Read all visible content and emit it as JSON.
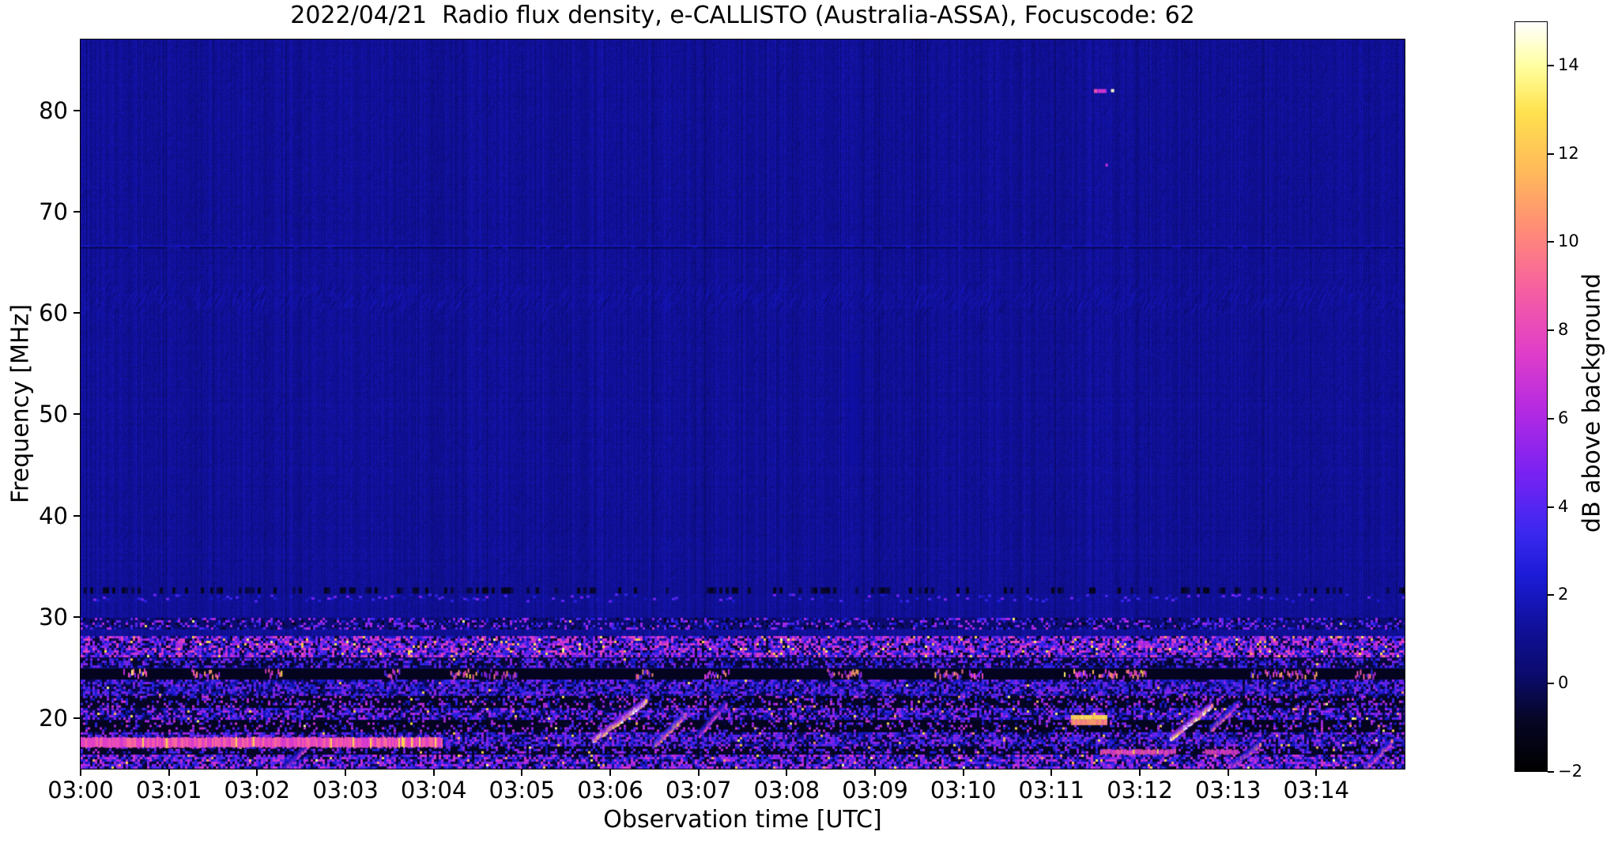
{
  "chart_data": {
    "type": "heatmap",
    "subtype": "radio-spectrogram",
    "title": "2022/04/21  Radio flux density, e-CALLISTO (Australia-ASSA), Focuscode: 62",
    "date": "2022/04/21",
    "instrument": "e-CALLISTO",
    "station": "Australia-ASSA",
    "focuscode": "62",
    "xlabel": "Observation time [UTC]",
    "ylabel": "Frequency [MHz]",
    "x_ticks": [
      "03:00",
      "03:01",
      "03:02",
      "03:03",
      "03:04",
      "03:05",
      "03:06",
      "03:07",
      "03:08",
      "03:09",
      "03:10",
      "03:11",
      "03:12",
      "03:13",
      "03:14"
    ],
    "x_total_minutes": 15,
    "xlim": [
      "03:00",
      "03:15"
    ],
    "y_ticks": [
      20,
      30,
      40,
      50,
      60,
      70,
      80
    ],
    "ylim": [
      15,
      87
    ],
    "grid": false,
    "background_db": 1.2,
    "colorbar": {
      "label": "dB above background",
      "position": "right",
      "vmin": -2,
      "vmax": 15,
      "tick_values": [
        14,
        12,
        10,
        8,
        6,
        4,
        2,
        0,
        -2
      ],
      "tick_labels": [
        "14",
        "12",
        "10",
        "8",
        "6",
        "4",
        "2",
        "0",
        "−2"
      ],
      "gradient_stops": [
        {
          "pos": 0.0,
          "color": "#000000"
        },
        {
          "pos": 0.07,
          "color": "#060626"
        },
        {
          "pos": 0.13,
          "color": "#0b0b6e"
        },
        {
          "pos": 0.19,
          "color": "#101099"
        },
        {
          "pos": 0.26,
          "color": "#1b1bd6"
        },
        {
          "pos": 0.32,
          "color": "#3c28f0"
        },
        {
          "pos": 0.4,
          "color": "#7a22f2"
        },
        {
          "pos": 0.48,
          "color": "#b32ae2"
        },
        {
          "pos": 0.56,
          "color": "#e03ec8"
        },
        {
          "pos": 0.64,
          "color": "#f55ea2"
        },
        {
          "pos": 0.72,
          "color": "#ff8a78"
        },
        {
          "pos": 0.8,
          "color": "#ffb95a"
        },
        {
          "pos": 0.88,
          "color": "#ffe14e"
        },
        {
          "pos": 0.94,
          "color": "#ffff9e"
        },
        {
          "pos": 1.0,
          "color": "#ffffff"
        }
      ]
    },
    "quiet_region": {
      "f_mhz": [
        33,
        87
      ],
      "level_db": 1.2,
      "character": "uniform dark blue with vertical striation noise and faint diagonal scratches"
    },
    "persistent_lines": [
      {
        "f_mhz": 66.6,
        "character": "faint lighter channel line with dark line just below, full duration"
      },
      {
        "f_mhz": [
          59.7,
          62.3
        ],
        "character": "band of dense faint diagonal (rising) interference hatching, full duration"
      },
      {
        "f_mhz": [
          31.4,
          32.3
        ],
        "character": "faint speckled interference line, full duration"
      },
      {
        "f_mhz": [
          32.3,
          32.9
        ],
        "character": "dark dashed line, full duration"
      }
    ],
    "rfi_bands": [
      {
        "f_mhz": [
          28.8,
          29.9
        ],
        "db": [
          1,
          6
        ],
        "character": "sparse speckle",
        "paint": {
          "base": 0.13,
          "density": 0.3,
          "amp": [
            0.2,
            0.5
          ],
          "hot": 0.005
        }
      },
      {
        "f_mhz": [
          25.9,
          28.1
        ],
        "db": [
          1,
          10
        ],
        "character": "dense bright speckle with orange/yellow bursts",
        "paint": {
          "base": 0.1,
          "density": 0.8,
          "amp": [
            0.18,
            0.6
          ],
          "hot": 0.035
        }
      },
      {
        "f_mhz": [
          25.0,
          25.9
        ],
        "db": [
          1,
          6
        ],
        "character": "moderate speckle",
        "paint": {
          "base": 0.08,
          "density": 0.5,
          "amp": [
            0.18,
            0.45
          ],
          "hot": 0.008
        }
      },
      {
        "f_mhz": [
          23.8,
          24.9
        ],
        "db": [
          -2,
          12
        ],
        "character": "black band with clusters of bright dashes",
        "paint": {
          "base": 0.04,
          "density": 0.45,
          "amp": [
            0.3,
            0.8
          ],
          "hot": 0.05,
          "cluster": true
        }
      },
      {
        "f_mhz": [
          22.2,
          23.8
        ],
        "db": [
          1,
          6
        ],
        "character": "blue/violet speckle",
        "paint": {
          "base": 0.1,
          "density": 0.7,
          "amp": [
            0.17,
            0.45
          ],
          "hot": 0.006
        }
      },
      {
        "f_mhz": [
          21.0,
          22.2
        ],
        "db": [
          -2,
          8
        ],
        "character": "dark with sparse bright spots",
        "paint": {
          "base": 0.05,
          "density": 0.3,
          "amp": [
            0.2,
            0.55
          ],
          "hot": 0.015
        }
      },
      {
        "f_mhz": [
          19.8,
          21.0
        ],
        "db": [
          1,
          8
        ],
        "character": "moderate speckle",
        "paint": {
          "base": 0.09,
          "density": 0.65,
          "amp": [
            0.18,
            0.5
          ],
          "hot": 0.02
        }
      },
      {
        "f_mhz": [
          18.6,
          19.8
        ],
        "db": [
          -2,
          10
        ],
        "character": "dark with sparse bright spots",
        "paint": {
          "base": 0.04,
          "density": 0.25,
          "amp": [
            0.2,
            0.55
          ],
          "hot": 0.02
        }
      },
      {
        "f_mhz": [
          17.2,
          18.6
        ],
        "db": [
          1,
          8
        ],
        "character": "moderate speckle",
        "paint": {
          "base": 0.09,
          "density": 0.7,
          "amp": [
            0.17,
            0.48
          ],
          "hot": 0.012
        }
      },
      {
        "f_mhz": [
          16.4,
          17.2
        ],
        "db": [
          -2,
          8
        ],
        "character": "dark with speckle",
        "paint": {
          "base": 0.05,
          "density": 0.35,
          "amp": [
            0.2,
            0.5
          ],
          "hot": 0.015
        }
      },
      {
        "f_mhz": [
          15.0,
          16.4
        ],
        "db": [
          1,
          10
        ],
        "character": "dense speckle with bright dots",
        "paint": {
          "base": 0.09,
          "density": 0.75,
          "amp": [
            0.18,
            0.55
          ],
          "hot": 0.03
        }
      }
    ],
    "features": [
      {
        "type": "dash",
        "label": "bright transient",
        "t_min": [
          11.48,
          11.62
        ],
        "f_mhz": [
          81.6,
          82.3
        ],
        "amp": 0.55,
        "white_dot": true
      },
      {
        "type": "dot",
        "label": "small transient",
        "t_min": 11.62,
        "f_mhz": 74.6,
        "amp": 0.5
      },
      {
        "type": "plume",
        "label": "faint vertical brightening",
        "t_min": 8.75,
        "f_mhz": [
          45,
          56
        ],
        "amp": 0.21
      },
      {
        "type": "sweep",
        "label": "drifting sweeper",
        "t_min": [
          5.8,
          6.4
        ],
        "f_mhz": [
          17.9,
          21.8
        ],
        "amp": 0.95
      },
      {
        "type": "sweep",
        "label": "drifting sweeper",
        "t_min": [
          6.5,
          6.85
        ],
        "f_mhz": [
          17.5,
          20.5
        ],
        "amp": 0.7
      },
      {
        "type": "sweep",
        "label": "drifting sweeper",
        "t_min": [
          7.0,
          7.3
        ],
        "f_mhz": [
          18.5,
          21.5
        ],
        "amp": 0.5
      },
      {
        "type": "sweep",
        "label": "drifting sweeper",
        "t_min": [
          12.35,
          12.8
        ],
        "f_mhz": [
          18.2,
          21.3
        ],
        "amp": 0.95
      },
      {
        "type": "sweep",
        "label": "drifting sweeper",
        "t_min": [
          12.8,
          13.1
        ],
        "f_mhz": [
          19.0,
          21.5
        ],
        "amp": 0.6
      },
      {
        "type": "sweep",
        "label": "drifting sweeper",
        "t_min": [
          13.05,
          13.35
        ],
        "f_mhz": [
          15.5,
          17.5
        ],
        "amp": 0.6
      },
      {
        "type": "sweep",
        "label": "drifting sweeper",
        "t_min": [
          2.3,
          2.55
        ],
        "f_mhz": [
          15.2,
          17.2
        ],
        "amp": 0.5
      },
      {
        "type": "sweep",
        "label": "drifting sweeper",
        "t_min": [
          14.55,
          14.85
        ],
        "f_mhz": [
          15.2,
          17.8
        ],
        "amp": 0.6
      },
      {
        "type": "bar",
        "label": "strong narrowband burst",
        "t_min": [
          11.22,
          11.62
        ],
        "f_mhz": [
          19.3,
          20.3
        ],
        "amp": 0.85,
        "two_tone": true
      },
      {
        "type": "bar",
        "label": "continuous station band",
        "t_min": [
          0.0,
          4.1
        ],
        "f_mhz": [
          17.1,
          18.1
        ],
        "amp": 0.6
      },
      {
        "type": "bar",
        "label": "pink station segment",
        "t_min": [
          11.55,
          12.4
        ],
        "f_mhz": [
          16.4,
          16.9
        ],
        "amp": 0.58
      },
      {
        "type": "bar",
        "label": "pink station segment",
        "t_min": [
          12.74,
          13.1
        ],
        "f_mhz": [
          16.4,
          16.9
        ],
        "amp": 0.55
      }
    ]
  }
}
